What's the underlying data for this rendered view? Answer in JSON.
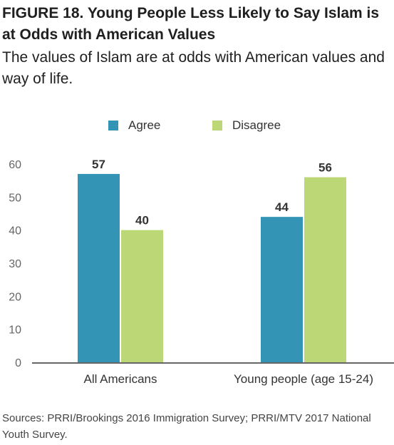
{
  "title": "FIGURE 18. Young People Less Likely to Say Islam is at Odds with American Values",
  "subtitle": "The values of Islam are at odds with American values and way of life.",
  "source": "Sources: PRRI/Brookings 2016 Immigration Survey; PRRI/MTV 2017 National Youth Survey.",
  "chart_data": {
    "type": "bar",
    "categories": [
      "All Americans",
      "Young people (age 15-24)"
    ],
    "series": [
      {
        "name": "Agree",
        "values": [
          57,
          44
        ],
        "color": "#3394b5"
      },
      {
        "name": "Disagree",
        "values": [
          40,
          56
        ],
        "color": "#bcd876"
      }
    ],
    "yticks": [
      0,
      10,
      20,
      30,
      40,
      50,
      60
    ],
    "ylim": [
      0,
      60
    ],
    "grid": false,
    "legend": "top-center",
    "data_labels": true,
    "axis_color": "#333333"
  }
}
